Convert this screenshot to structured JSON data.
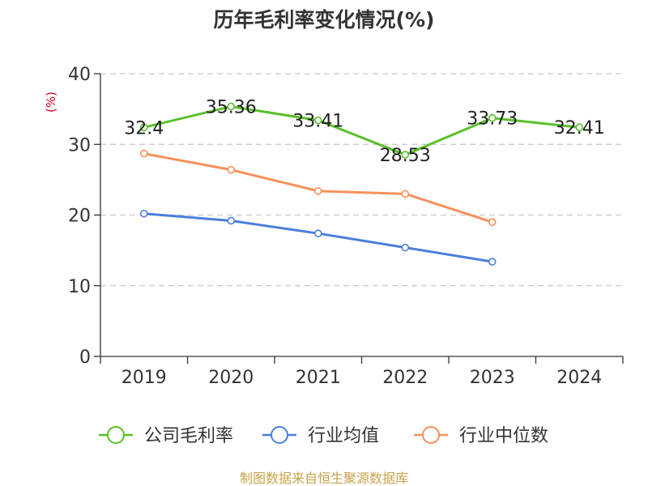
{
  "chart_data": {
    "type": "line",
    "title": "历年毛利率变化情况(%)",
    "unit_label": "(%)",
    "categories": [
      "2019",
      "2020",
      "2021",
      "2022",
      "2023",
      "2024"
    ],
    "ylim": [
      0,
      40
    ],
    "yticks": [
      "0",
      "10",
      "20",
      "30",
      "40"
    ],
    "grid": true,
    "legend_position": "bottom",
    "series": [
      {
        "name": "公司毛利率",
        "color": "#5bc02a",
        "values": [
          32.4,
          35.36,
          33.41,
          28.53,
          33.73,
          32.41
        ],
        "labels": [
          "32.4",
          "35.36",
          "33.41",
          "28.53",
          "33.73",
          "32.41"
        ]
      },
      {
        "name": "行业均值",
        "color": "#4a7fdc",
        "values": [
          20.2,
          19.2,
          17.4,
          15.4,
          13.4,
          null
        ]
      },
      {
        "name": "行业中位数",
        "color": "#f5915a",
        "values": [
          28.7,
          26.4,
          23.4,
          23.0,
          19.0,
          null
        ]
      }
    ],
    "source": "制图数据来自恒生聚源数据库"
  }
}
